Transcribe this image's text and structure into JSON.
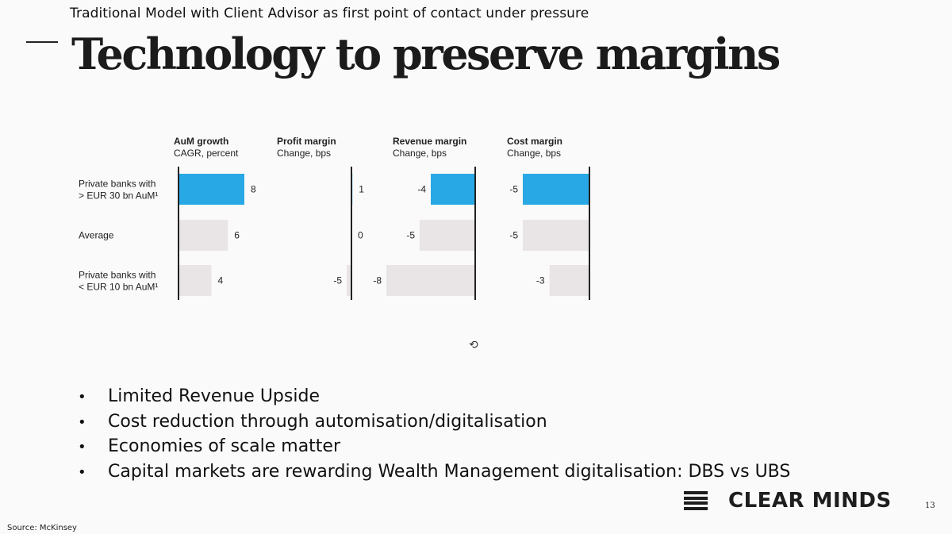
{
  "header": {
    "subtitle": "Traditional Model with Client Advisor as first point of contact under pressure",
    "title": "Technology to preserve margins"
  },
  "chart_data": {
    "type": "bar",
    "orientation": "horizontal",
    "categories": [
      {
        "line1": "Private banks with",
        "line2": "> EUR 30 bn AuM¹"
      },
      {
        "line1": "Average",
        "line2": ""
      },
      {
        "line1": "Private banks with",
        "line2": "< EUR 10 bn AuM¹"
      }
    ],
    "panels": [
      {
        "name": "AuM growth",
        "unit": "CAGR, percent",
        "values": [
          8,
          6,
          4
        ],
        "labels": [
          "8",
          "6",
          "4"
        ],
        "range": [
          0,
          8
        ]
      },
      {
        "name": "Profit margin",
        "unit": "Change, bps",
        "values": [
          1,
          0,
          -5
        ],
        "labels": [
          "1",
          "0",
          "-5"
        ],
        "range": [
          -5,
          1
        ]
      },
      {
        "name": "Revenue margin",
        "unit": "Change, bps",
        "values": [
          -4,
          -5,
          -8
        ],
        "labels": [
          "-4",
          "-5",
          "-8"
        ],
        "range": [
          -8,
          0
        ]
      },
      {
        "name": "Cost margin",
        "unit": "Change, bps",
        "values": [
          -5,
          -5,
          -3
        ],
        "labels": [
          "-5",
          "-5",
          "-3"
        ],
        "range": [
          -5,
          0
        ]
      }
    ],
    "colors": {
      "highlight": "#29a8e6",
      "default": "#e9e5e6",
      "axis": "#222222"
    }
  },
  "bullets": [
    "Limited Revenue Upside",
    "Cost reduction through automisation/digitalisation",
    "Economies of scale matter",
    "Capital markets are rewarding Wealth Management digitalisation: DBS vs UBS"
  ],
  "bullet_marker": "•",
  "footer": {
    "brand": "CLEAR MINDS",
    "page_number": "13",
    "source": "Source: McKinsey",
    "cursor_icon": "⟲"
  }
}
